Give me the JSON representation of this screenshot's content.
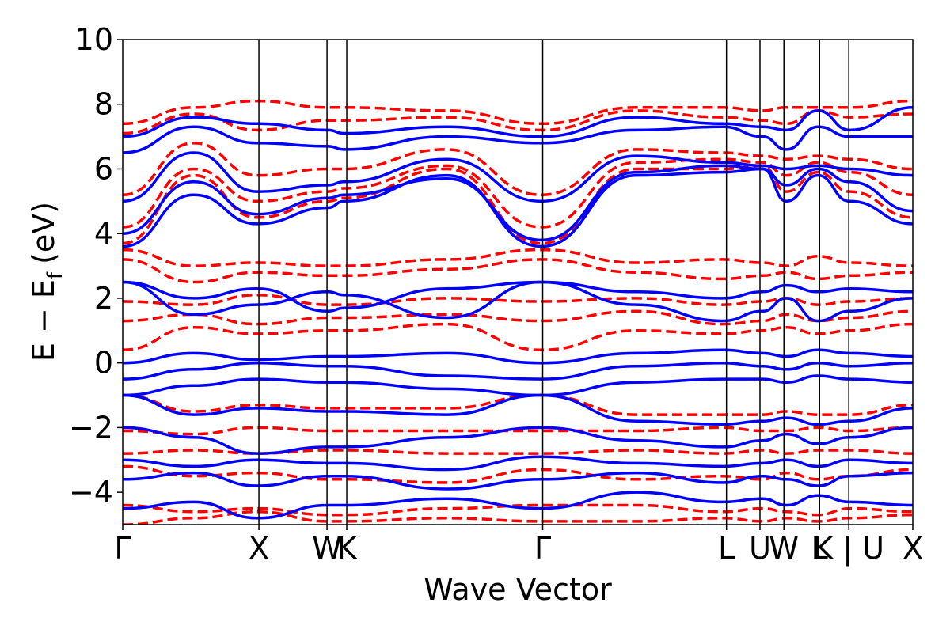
{
  "chart_data": {
    "type": "line",
    "title": "",
    "xlabel": "Wave Vector",
    "ylabel": "E − E",
    "ylabel_subscript": "f",
    "ylabel_unit": "(eV)",
    "ylim": [
      -5,
      10
    ],
    "yticks": [
      -4,
      -2,
      0,
      2,
      4,
      6,
      8,
      10
    ],
    "ytick_labels": [
      "−4",
      "−2",
      "0",
      "2",
      "4",
      "6",
      "8",
      "10"
    ],
    "xlim": [
      0,
      1
    ],
    "kpoints": [
      {
        "label": "Γ",
        "x": 0.0
      },
      {
        "label": "X",
        "x": 0.1724
      },
      {
        "label": "W",
        "x": 0.2586
      },
      {
        "label": "K",
        "x": 0.2836
      },
      {
        "label": "Γ",
        "x": 0.5316
      },
      {
        "label": "L",
        "x": 0.7642
      },
      {
        "label": "U",
        "x": 0.8066
      },
      {
        "label": "W",
        "x": 0.8369
      },
      {
        "label": "L",
        "x": 0.882
      },
      {
        "label": "K | U",
        "x": 0.919
      },
      {
        "label": "X",
        "x": 1.0
      }
    ],
    "grid": false,
    "legend": "none",
    "colors": {
      "spin_up": "#0000ff",
      "spin_down": "#ff0000",
      "kline": "#000000"
    },
    "series": [
      {
        "style": "solid",
        "color": "#0000ff",
        "x": [
          0,
          0.09,
          0.17,
          0.26,
          0.28,
          0.41,
          0.53,
          0.65,
          0.76,
          0.81,
          0.84,
          0.88,
          0.92,
          1.0
        ],
        "y": [
          3.6,
          5.2,
          4.3,
          4.8,
          5.0,
          5.8,
          3.6,
          5.8,
          5.9,
          6.0,
          5.0,
          5.8,
          5.0,
          4.3
        ]
      },
      {
        "style": "solid",
        "color": "#0000ff",
        "x": [
          0,
          0.09,
          0.17,
          0.26,
          0.28,
          0.41,
          0.53,
          0.65,
          0.76,
          0.81,
          0.84,
          0.88,
          0.92,
          1.0
        ],
        "y": [
          4.0,
          5.6,
          4.6,
          5.1,
          5.2,
          5.7,
          3.8,
          5.9,
          6.1,
          6.0,
          5.5,
          6.0,
          5.6,
          4.7
        ]
      },
      {
        "style": "solid",
        "color": "#0000ff",
        "x": [
          0,
          0.09,
          0.17,
          0.26,
          0.28,
          0.41,
          0.53,
          0.65,
          0.76,
          0.81,
          0.84,
          0.88,
          0.92,
          1.0
        ],
        "y": [
          5.0,
          6.5,
          5.3,
          5.5,
          5.6,
          6.3,
          5.0,
          6.4,
          6.2,
          6.1,
          6.0,
          6.1,
          6.0,
          5.8
        ]
      },
      {
        "style": "solid",
        "color": "#0000ff",
        "x": [
          0,
          0.09,
          0.17,
          0.26,
          0.28,
          0.41,
          0.53,
          0.65,
          0.76,
          0.81,
          0.84,
          0.88,
          0.92,
          1.0
        ],
        "y": [
          6.5,
          7.3,
          6.8,
          6.7,
          6.6,
          7.0,
          6.8,
          7.2,
          7.3,
          7.0,
          6.6,
          7.3,
          7.0,
          7.0
        ]
      },
      {
        "style": "solid",
        "color": "#0000ff",
        "x": [
          0,
          0.09,
          0.17,
          0.26,
          0.28,
          0.41,
          0.53,
          0.65,
          0.76,
          0.81,
          0.84,
          0.88,
          0.92,
          1.0
        ],
        "y": [
          7.0,
          7.6,
          7.4,
          7.2,
          7.1,
          7.3,
          7.0,
          7.6,
          7.4,
          7.3,
          7.2,
          7.8,
          7.2,
          7.9
        ]
      },
      {
        "style": "solid",
        "color": "#0000ff",
        "x": [
          0,
          0.09,
          0.17,
          0.26,
          0.28,
          0.41,
          0.53,
          0.65,
          0.76,
          0.81,
          0.84,
          0.88,
          0.92,
          1.0
        ],
        "y": [
          2.5,
          1.5,
          1.8,
          2.2,
          2.1,
          1.4,
          2.5,
          1.8,
          1.3,
          1.6,
          2.0,
          1.3,
          1.6,
          2.0
        ]
      },
      {
        "style": "solid",
        "color": "#0000ff",
        "x": [
          0,
          0.09,
          0.17,
          0.26,
          0.28,
          0.41,
          0.53,
          0.65,
          0.76,
          0.81,
          0.84,
          0.88,
          0.92,
          1.0
        ],
        "y": [
          2.5,
          2.0,
          2.3,
          1.6,
          1.7,
          2.3,
          2.5,
          2.2,
          2.0,
          2.2,
          2.4,
          2.2,
          2.3,
          2.2
        ]
      },
      {
        "style": "solid",
        "color": "#0000ff",
        "x": [
          0,
          0.09,
          0.17,
          0.26,
          0.28,
          0.41,
          0.53,
          0.65,
          0.76,
          0.81,
          0.84,
          0.88,
          0.92,
          1.0
        ],
        "y": [
          0.0,
          0.3,
          0.1,
          0.2,
          0.2,
          0.3,
          0.0,
          0.3,
          0.4,
          0.3,
          0.2,
          0.4,
          0.3,
          0.2
        ]
      },
      {
        "style": "solid",
        "color": "#0000ff",
        "x": [
          0,
          0.09,
          0.17,
          0.26,
          0.28,
          0.41,
          0.53,
          0.65,
          0.76,
          0.81,
          0.84,
          0.88,
          0.92,
          1.0
        ],
        "y": [
          -0.5,
          -0.2,
          0.0,
          -0.1,
          -0.1,
          -0.4,
          -0.5,
          -0.1,
          0.0,
          -0.1,
          -0.2,
          0.0,
          -0.1,
          0.0
        ]
      },
      {
        "style": "solid",
        "color": "#0000ff",
        "x": [
          0,
          0.09,
          0.17,
          0.26,
          0.28,
          0.41,
          0.53,
          0.65,
          0.76,
          0.81,
          0.84,
          0.88,
          0.92,
          1.0
        ],
        "y": [
          -1.0,
          -0.7,
          -0.5,
          -0.6,
          -0.6,
          -0.8,
          -1.0,
          -0.6,
          -0.5,
          -0.5,
          -0.6,
          -0.4,
          -0.5,
          -0.6
        ]
      },
      {
        "style": "solid",
        "color": "#0000ff",
        "x": [
          0,
          0.09,
          0.17,
          0.26,
          0.28,
          0.41,
          0.53,
          0.65,
          0.76,
          0.81,
          0.84,
          0.88,
          0.92,
          1.0
        ],
        "y": [
          -1.0,
          -1.6,
          -1.4,
          -1.5,
          -1.5,
          -1.6,
          -1.0,
          -1.8,
          -1.9,
          -1.8,
          -1.7,
          -1.9,
          -1.8,
          -1.4
        ]
      },
      {
        "style": "solid",
        "color": "#0000ff",
        "x": [
          0,
          0.09,
          0.17,
          0.26,
          0.28,
          0.41,
          0.53,
          0.65,
          0.76,
          0.81,
          0.84,
          0.88,
          0.92,
          1.0
        ],
        "y": [
          -2.0,
          -2.3,
          -2.8,
          -2.6,
          -2.6,
          -2.3,
          -2.0,
          -2.4,
          -2.6,
          -2.4,
          -2.2,
          -2.5,
          -2.3,
          -2.0
        ]
      },
      {
        "style": "solid",
        "color": "#0000ff",
        "x": [
          0,
          0.09,
          0.17,
          0.26,
          0.28,
          0.41,
          0.53,
          0.65,
          0.76,
          0.81,
          0.84,
          0.88,
          0.92,
          1.0
        ],
        "y": [
          -3.0,
          -3.2,
          -3.0,
          -3.1,
          -3.1,
          -3.3,
          -2.9,
          -3.1,
          -3.2,
          -3.1,
          -3.0,
          -3.2,
          -3.0,
          -3.1
        ]
      },
      {
        "style": "solid",
        "color": "#0000ff",
        "x": [
          0,
          0.09,
          0.17,
          0.26,
          0.28,
          0.41,
          0.53,
          0.65,
          0.76,
          0.81,
          0.84,
          0.88,
          0.92,
          1.0
        ],
        "y": [
          -3.6,
          -3.4,
          -3.8,
          -3.5,
          -3.5,
          -3.9,
          -3.6,
          -3.4,
          -3.7,
          -3.5,
          -3.6,
          -3.8,
          -3.5,
          -3.4
        ]
      },
      {
        "style": "solid",
        "color": "#0000ff",
        "x": [
          0,
          0.09,
          0.17,
          0.26,
          0.28,
          0.41,
          0.53,
          0.65,
          0.76,
          0.81,
          0.84,
          0.88,
          0.92,
          1.0
        ],
        "y": [
          -4.5,
          -4.3,
          -4.8,
          -4.4,
          -4.4,
          -4.2,
          -4.5,
          -4.0,
          -4.3,
          -4.2,
          -4.4,
          -4.1,
          -4.3,
          -4.4
        ]
      },
      {
        "style": "dashed",
        "color": "#ff0000",
        "x": [
          0,
          0.09,
          0.17,
          0.26,
          0.28,
          0.41,
          0.53,
          0.65,
          0.76,
          0.81,
          0.84,
          0.88,
          0.92,
          1.0
        ],
        "y": [
          3.7,
          5.8,
          4.5,
          5.0,
          5.1,
          6.0,
          3.7,
          6.0,
          6.0,
          6.1,
          5.3,
          5.9,
          5.3,
          4.5
        ]
      },
      {
        "style": "dashed",
        "color": "#ff0000",
        "x": [
          0,
          0.09,
          0.17,
          0.26,
          0.28,
          0.41,
          0.53,
          0.65,
          0.76,
          0.81,
          0.84,
          0.88,
          0.92,
          1.0
        ],
        "y": [
          4.2,
          6.0,
          5.0,
          5.3,
          5.4,
          6.1,
          4.2,
          6.2,
          6.3,
          6.2,
          5.8,
          6.2,
          5.9,
          5.2
        ]
      },
      {
        "style": "dashed",
        "color": "#ff0000",
        "x": [
          0,
          0.09,
          0.17,
          0.26,
          0.28,
          0.41,
          0.53,
          0.65,
          0.76,
          0.81,
          0.84,
          0.88,
          0.92,
          1.0
        ],
        "y": [
          5.2,
          6.8,
          5.8,
          6.0,
          6.0,
          6.6,
          5.2,
          6.6,
          6.5,
          6.4,
          6.3,
          6.4,
          6.3,
          6.0
        ]
      },
      {
        "style": "dashed",
        "color": "#ff0000",
        "x": [
          0,
          0.09,
          0.17,
          0.26,
          0.28,
          0.41,
          0.53,
          0.65,
          0.76,
          0.81,
          0.84,
          0.88,
          0.92,
          1.0
        ],
        "y": [
          7.1,
          7.7,
          7.2,
          7.5,
          7.5,
          7.6,
          7.2,
          7.8,
          7.6,
          7.5,
          7.4,
          7.8,
          7.6,
          7.7
        ]
      },
      {
        "style": "dashed",
        "color": "#ff0000",
        "x": [
          0,
          0.09,
          0.17,
          0.26,
          0.28,
          0.41,
          0.53,
          0.65,
          0.76,
          0.81,
          0.84,
          0.88,
          0.92,
          1.0
        ],
        "y": [
          7.4,
          7.9,
          8.1,
          7.9,
          7.9,
          7.8,
          7.4,
          7.9,
          7.9,
          7.8,
          7.9,
          7.9,
          7.9,
          8.1
        ]
      },
      {
        "style": "dashed",
        "color": "#ff0000",
        "x": [
          0,
          0.09,
          0.17,
          0.26,
          0.28,
          0.41,
          0.53,
          0.65,
          0.76,
          0.81,
          0.84,
          0.88,
          0.92,
          1.0
        ],
        "y": [
          3.5,
          3.0,
          3.1,
          3.0,
          3.0,
          3.2,
          3.5,
          3.1,
          3.2,
          3.1,
          3.0,
          3.3,
          3.1,
          3.0
        ]
      },
      {
        "style": "dashed",
        "color": "#ff0000",
        "x": [
          0,
          0.09,
          0.17,
          0.26,
          0.28,
          0.41,
          0.53,
          0.65,
          0.76,
          0.81,
          0.84,
          0.88,
          0.92,
          1.0
        ],
        "y": [
          3.2,
          2.5,
          2.8,
          2.7,
          2.7,
          2.9,
          3.2,
          2.8,
          2.6,
          2.7,
          2.8,
          2.6,
          2.7,
          2.8
        ]
      },
      {
        "style": "dashed",
        "color": "#ff0000",
        "x": [
          0,
          0.09,
          0.17,
          0.26,
          0.28,
          0.41,
          0.53,
          0.65,
          0.76,
          0.81,
          0.84,
          0.88,
          0.92,
          1.0
        ],
        "y": [
          1.9,
          1.8,
          2.1,
          1.8,
          1.8,
          2.0,
          1.9,
          2.0,
          1.8,
          1.9,
          2.0,
          1.8,
          1.9,
          2.0
        ]
      },
      {
        "style": "dashed",
        "color": "#ff0000",
        "x": [
          0,
          0.09,
          0.17,
          0.26,
          0.28,
          0.41,
          0.53,
          0.65,
          0.76,
          0.81,
          0.84,
          0.88,
          0.92,
          1.0
        ],
        "y": [
          1.3,
          1.5,
          1.2,
          1.4,
          1.4,
          1.5,
          1.3,
          1.6,
          1.2,
          1.3,
          1.5,
          1.3,
          1.4,
          1.6
        ]
      },
      {
        "style": "dashed",
        "color": "#ff0000",
        "x": [
          0,
          0.09,
          0.17,
          0.26,
          0.28,
          0.41,
          0.53,
          0.65,
          0.76,
          0.81,
          0.84,
          0.88,
          0.92,
          1.0
        ],
        "y": [
          0.4,
          1.1,
          0.9,
          1.0,
          1.0,
          1.2,
          0.4,
          1.0,
          0.9,
          1.0,
          1.1,
          0.9,
          1.0,
          1.2
        ]
      },
      {
        "style": "dashed",
        "color": "#ff0000",
        "x": [
          0,
          0.09,
          0.17,
          0.26,
          0.28,
          0.41,
          0.53,
          0.65,
          0.76,
          0.81,
          0.84,
          0.88,
          0.92,
          1.0
        ],
        "y": [
          -1.0,
          -1.5,
          -1.3,
          -1.4,
          -1.4,
          -1.4,
          -1.0,
          -1.6,
          -1.6,
          -1.6,
          -1.5,
          -1.6,
          -1.6,
          -1.3
        ]
      },
      {
        "style": "dashed",
        "color": "#ff0000",
        "x": [
          0,
          0.09,
          0.17,
          0.26,
          0.28,
          0.41,
          0.53,
          0.65,
          0.76,
          0.81,
          0.84,
          0.88,
          0.92,
          1.0
        ],
        "y": [
          -2.1,
          -2.2,
          -2.0,
          -2.1,
          -2.1,
          -2.1,
          -2.1,
          -2.1,
          -2.0,
          -2.1,
          -2.1,
          -2.0,
          -2.1,
          -2.0
        ]
      },
      {
        "style": "dashed",
        "color": "#ff0000",
        "x": [
          0,
          0.09,
          0.17,
          0.26,
          0.28,
          0.41,
          0.53,
          0.65,
          0.76,
          0.81,
          0.84,
          0.88,
          0.92,
          1.0
        ],
        "y": [
          -2.8,
          -2.7,
          -2.8,
          -2.7,
          -2.7,
          -2.8,
          -2.8,
          -2.7,
          -2.8,
          -2.7,
          -2.8,
          -2.7,
          -2.7,
          -2.8
        ]
      },
      {
        "style": "dashed",
        "color": "#ff0000",
        "x": [
          0,
          0.09,
          0.17,
          0.26,
          0.28,
          0.41,
          0.53,
          0.65,
          0.76,
          0.81,
          0.84,
          0.88,
          0.92,
          1.0
        ],
        "y": [
          -3.2,
          -3.5,
          -3.4,
          -3.6,
          -3.6,
          -3.7,
          -3.3,
          -3.6,
          -3.5,
          -3.6,
          -3.4,
          -3.6,
          -3.5,
          -3.3
        ]
      },
      {
        "style": "dashed",
        "color": "#ff0000",
        "x": [
          0,
          0.09,
          0.17,
          0.26,
          0.28,
          0.41,
          0.53,
          0.65,
          0.76,
          0.81,
          0.84,
          0.88,
          0.92,
          1.0
        ],
        "y": [
          -4.4,
          -4.6,
          -4.5,
          -4.7,
          -4.7,
          -4.5,
          -4.4,
          -4.4,
          -4.6,
          -4.5,
          -4.6,
          -4.7,
          -4.5,
          -4.6
        ]
      },
      {
        "style": "dashed",
        "color": "#ff0000",
        "x": [
          0,
          0.09,
          0.17,
          0.26,
          0.28,
          0.41,
          0.53,
          0.65,
          0.76,
          0.81,
          0.84,
          0.88,
          0.92,
          1.0
        ],
        "y": [
          -5.0,
          -4.8,
          -4.6,
          -4.9,
          -4.9,
          -4.8,
          -4.9,
          -4.9,
          -4.8,
          -4.9,
          -4.8,
          -4.9,
          -4.8,
          -4.7
        ]
      }
    ]
  }
}
